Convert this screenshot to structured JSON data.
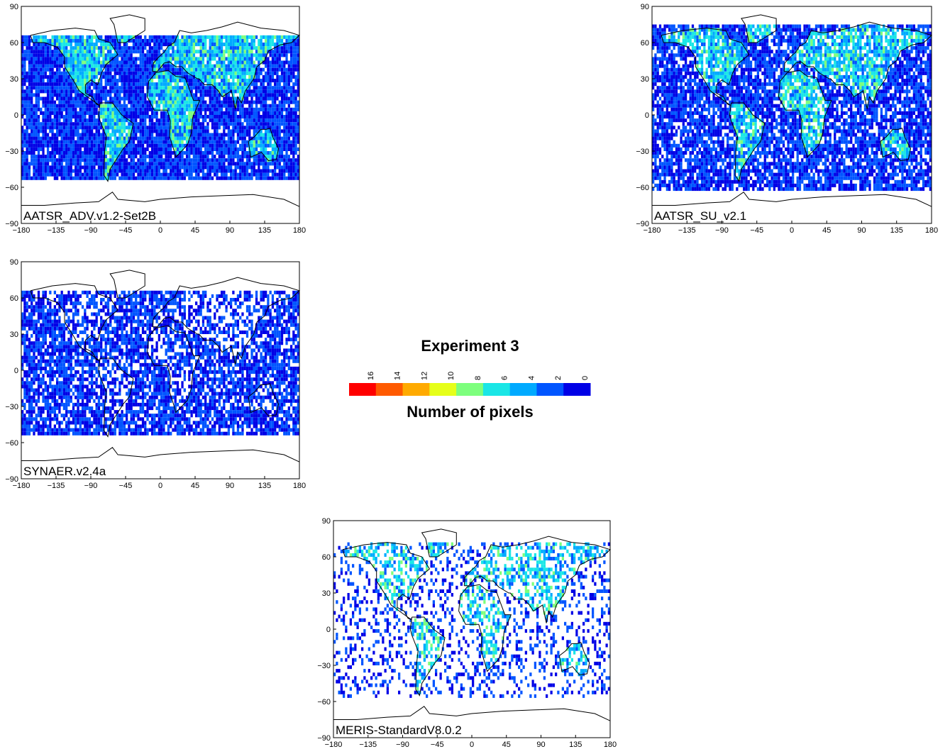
{
  "chart_data": {
    "type": "heatmap",
    "colorbar": {
      "title": "Experiment 3",
      "label": "Number of pixels",
      "ticks": [
        "16",
        "14",
        "12",
        "10",
        "8",
        "6",
        "4",
        "2",
        "0"
      ],
      "colors": [
        "#ff0000",
        "#ff5a00",
        "#ffaa00",
        "#e6ff1a",
        "#7dff7d",
        "#1ae6e6",
        "#00aaff",
        "#0055ff",
        "#0000e6"
      ]
    },
    "xlim": [
      -180,
      180
    ],
    "ylim": [
      -90,
      90
    ],
    "x_ticks": [
      "−180",
      "−135",
      "−90",
      "−45",
      "0",
      "45",
      "90",
      "135",
      "180"
    ],
    "y_ticks": [
      "90",
      "60",
      "30",
      "0",
      "−30",
      "−60",
      "−90"
    ],
    "panels": [
      {
        "name": "AATSR_ADV.v1.2-Set2B",
        "coverage_lat": [
          -55,
          67
        ],
        "density": 0.93,
        "high_regions": "land"
      },
      {
        "name": "AATSR_SU_v2.1",
        "coverage_lat": [
          -62,
          75
        ],
        "density": 0.82,
        "high_regions": "land"
      },
      {
        "name": "SYNAER.v2.4a",
        "coverage_lat": [
          -55,
          65
        ],
        "density": 0.8,
        "high_regions": "none"
      },
      {
        "name": "MERIS-StandardV8.0.2",
        "coverage_lat": [
          -58,
          72
        ],
        "density": 0.55,
        "high_regions": "land"
      }
    ]
  }
}
